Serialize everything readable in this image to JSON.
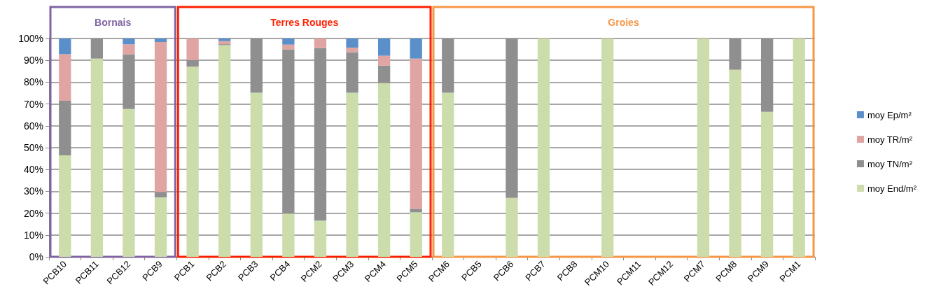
{
  "chart_data": {
    "type": "bar",
    "stacked": true,
    "categories": [
      "PCB10",
      "PCB11",
      "PCB12",
      "PCB9",
      "PCB1",
      "PCB2",
      "PCB3",
      "PCB4",
      "PCM2",
      "PCM3",
      "PCM4",
      "PCM5",
      "PCM6",
      "PCB5",
      "PCB6",
      "PCB7",
      "PCB8",
      "PCM10",
      "PCM11",
      "PCM12",
      "PCM7",
      "PCM8",
      "PCM9",
      "PCM1"
    ],
    "series": [
      {
        "name": "moy End/m²",
        "color": "#cddcab",
        "values": [
          46.5,
          90.8,
          67.7,
          27.2,
          87.1,
          97,
          75.2,
          19.8,
          16.6,
          75.2,
          79.6,
          20.4,
          75.2,
          null,
          27,
          100,
          null,
          100,
          null,
          null,
          100,
          85.7,
          66.4,
          100
        ]
      },
      {
        "name": "moy TN/m²",
        "color": "#8f8f8f",
        "values": [
          25,
          9.2,
          25,
          2.5,
          3,
          0.4,
          24.8,
          75.2,
          79.1,
          18.5,
          8,
          1.6,
          24.8,
          null,
          73,
          0,
          null,
          0,
          null,
          null,
          0,
          14.3,
          33.6,
          0
        ]
      },
      {
        "name": "moy TR/m²",
        "color": "#e0a4a2",
        "values": [
          21.3,
          0,
          4.6,
          68.7,
          9.9,
          1.4,
          0,
          2.2,
          4.3,
          2.1,
          4.5,
          68.8,
          0,
          null,
          0,
          0,
          null,
          0,
          null,
          null,
          0,
          0,
          0,
          0
        ]
      },
      {
        "name": "moy Ep/m²",
        "color": "#5b8fc9",
        "values": [
          7.2,
          0,
          2.7,
          1.6,
          0,
          1.2,
          0,
          2.8,
          0,
          4.2,
          7.9,
          9.2,
          0,
          null,
          0,
          0,
          null,
          0,
          null,
          null,
          0,
          0,
          0,
          0
        ]
      }
    ],
    "ylim": [
      0,
      100
    ],
    "yticks": [
      {
        "value": 0,
        "label": "0%"
      },
      {
        "value": 10,
        "label": "10%"
      },
      {
        "value": 20,
        "label": "20%"
      },
      {
        "value": 30,
        "label": "30%"
      },
      {
        "value": 40,
        "label": "40%"
      },
      {
        "value": 50,
        "label": "50%"
      },
      {
        "value": 60,
        "label": "60%"
      },
      {
        "value": 70,
        "label": "70%"
      },
      {
        "value": 80,
        "label": "80%"
      },
      {
        "value": 90,
        "label": "90%"
      },
      {
        "value": 100,
        "label": "100%"
      }
    ],
    "grid": "y",
    "legend": "right",
    "bands": [
      {
        "axis": "x",
        "from": "PCB10",
        "to": "PCB9",
        "label": "Bornais",
        "color": "#8064a2"
      },
      {
        "axis": "x",
        "from": "PCB1",
        "to": "PCM5",
        "label": "Terres Rouges",
        "color": "#ff2000"
      },
      {
        "axis": "x",
        "from": "PCM6",
        "to": "PCM1",
        "label": "Groies",
        "color": "#f79646"
      }
    ]
  }
}
